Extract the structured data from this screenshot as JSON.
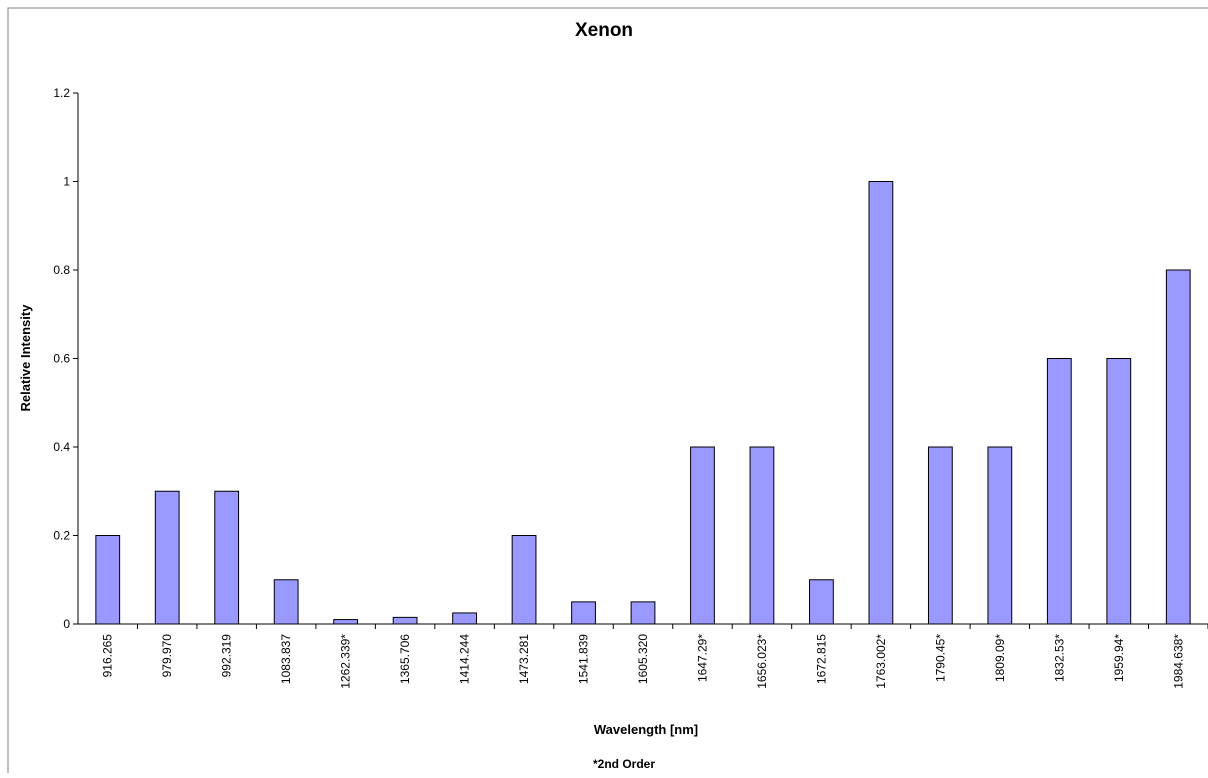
{
  "chart_data": {
    "type": "bar",
    "title": "Xenon",
    "xlabel": "Wavelength [nm]",
    "ylabel": "Relative Intensity",
    "footnote": "*2nd Order",
    "categories": [
      "916.265",
      "979.970",
      "992.319",
      "1083.837",
      "1262.339*",
      "1365.706",
      "1414.244",
      "1473.281",
      "1541.839",
      "1605.320",
      "1647.29*",
      "1656.023*",
      "1672.815",
      "1763.002*",
      "1790.45*",
      "1809.09*",
      "1832.53*",
      "1959.94*",
      "1984.638*"
    ],
    "values": [
      0.2,
      0.3,
      0.3,
      0.1,
      0.01,
      0.015,
      0.025,
      0.2,
      0.05,
      0.05,
      0.4,
      0.4,
      0.1,
      1.0,
      0.4,
      0.4,
      0.6,
      0.6,
      0.8
    ],
    "ylim": [
      0,
      1.2
    ],
    "yticks": [
      "0",
      "0.2",
      "0.4",
      "0.6",
      "0.8",
      "1",
      "1.2"
    ],
    "grid": false,
    "legend": "none",
    "bar_color": "#9999ff",
    "bar_stroke": "#000000"
  }
}
